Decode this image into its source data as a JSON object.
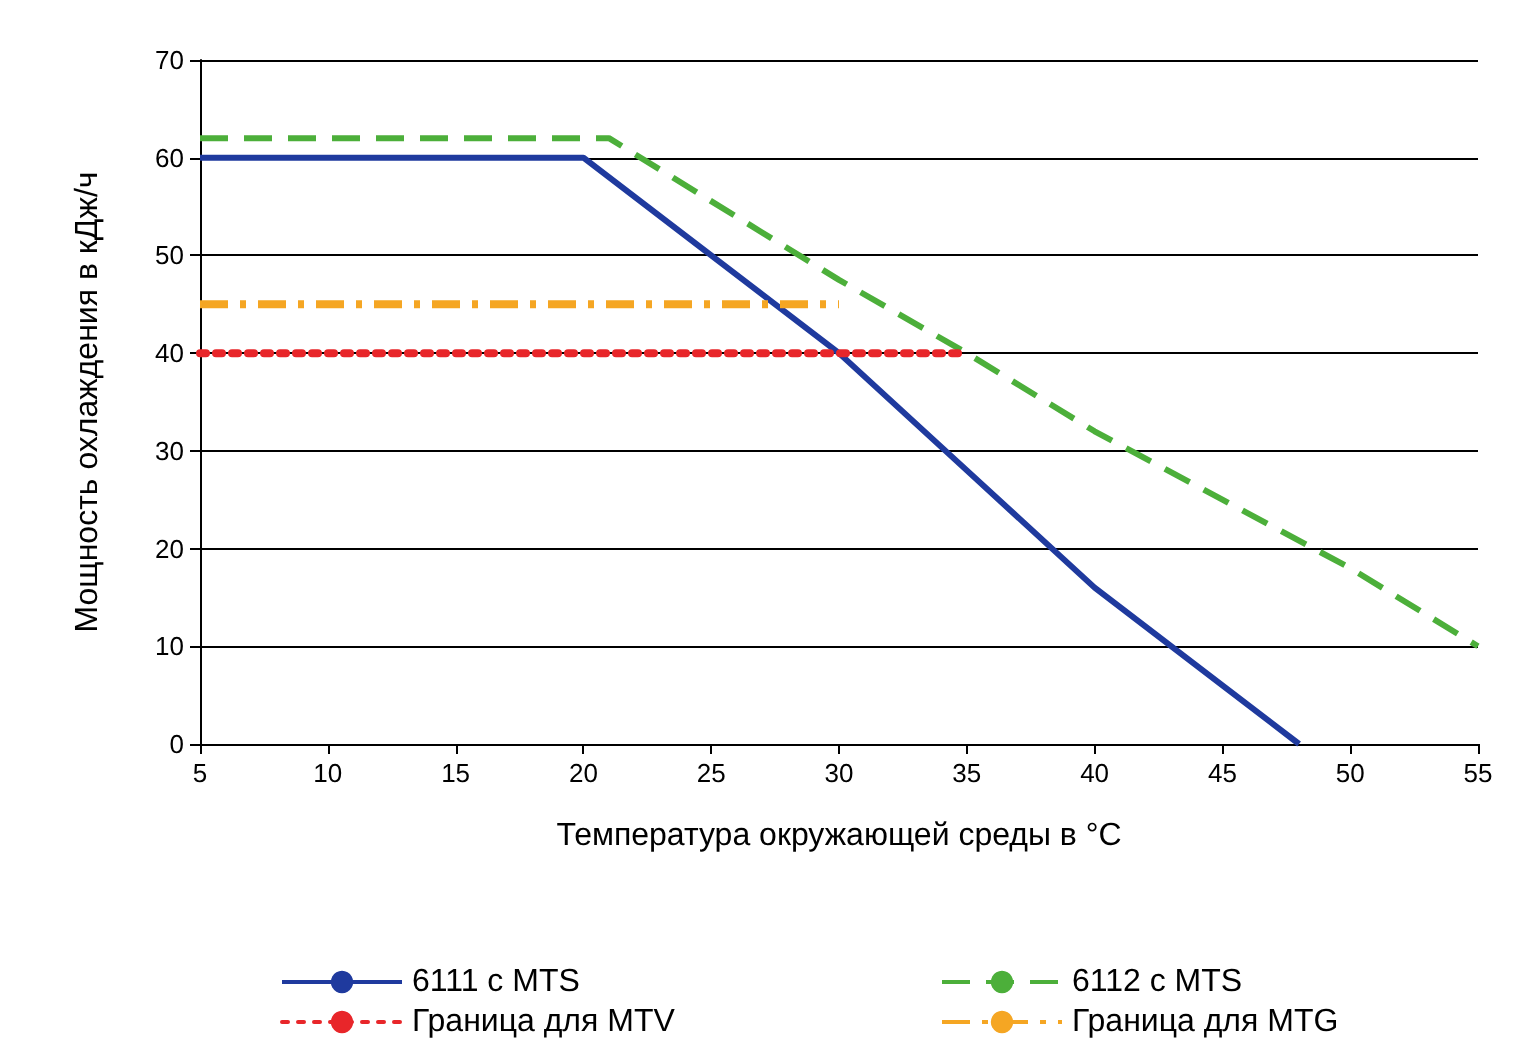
{
  "chart_data": {
    "type": "line",
    "xlabel": "Температура окружающей среды в °C",
    "ylabel": "Мощность охлаждения в кДж/ч",
    "xlim": [
      5,
      55
    ],
    "xticks": [
      5,
      10,
      15,
      20,
      25,
      30,
      35,
      40,
      45,
      50,
      55
    ],
    "ylim": [
      0,
      70
    ],
    "yticks": [
      0,
      10,
      20,
      30,
      40,
      50,
      60,
      70
    ],
    "grid": "y",
    "legend": "bottom",
    "marker": "none",
    "series": [
      {
        "name": "6111 с MTS",
        "color": "#1f3a9e",
        "line_style": "solid",
        "x": [
          5,
          20,
          25,
          30,
          35,
          40,
          45,
          48
        ],
        "values": [
          60,
          60,
          50,
          40,
          28,
          16,
          6,
          0
        ]
      },
      {
        "name": "6112 с MTS",
        "color": "#4caf3a",
        "line_style": "dashed",
        "x": [
          5,
          21,
          30,
          35,
          40,
          45,
          50,
          55
        ],
        "values": [
          62,
          62,
          47.5,
          40,
          32,
          25,
          18,
          10
        ]
      },
      {
        "name": "Граница для MTV",
        "color": "#e8262a",
        "line_style": "dotted",
        "x": [
          5,
          35
        ],
        "values": [
          40,
          40
        ]
      },
      {
        "name": "Граница для MTG",
        "color": "#f5a623",
        "line_style": "dashdot",
        "x": [
          5,
          30
        ],
        "values": [
          45,
          45
        ]
      }
    ]
  }
}
